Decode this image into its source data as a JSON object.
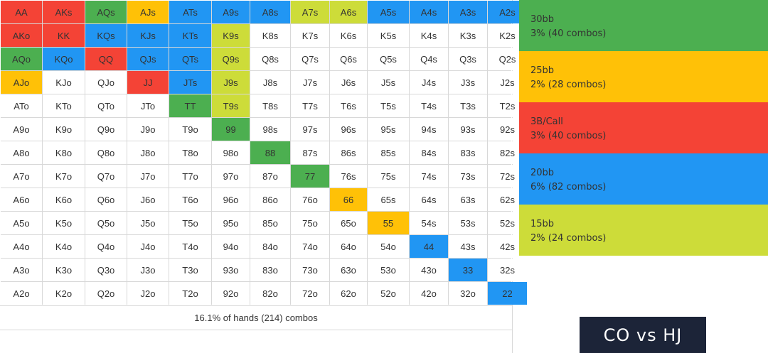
{
  "colors": {
    "30bb": "#4caf50",
    "25bb": "#ffc107",
    "3bcall": "#f44336",
    "20bb": "#2196f3",
    "15bb": "#cddc39",
    "none": "#ffffff"
  },
  "grid": [
    [
      [
        "AA",
        "3bcall"
      ],
      [
        "AKs",
        "3bcall"
      ],
      [
        "AQs",
        "30bb"
      ],
      [
        "AJs",
        "25bb"
      ],
      [
        "ATs",
        "20bb"
      ],
      [
        "A9s",
        "20bb"
      ],
      [
        "A8s",
        "20bb"
      ],
      [
        "A7s",
        "15bb"
      ],
      [
        "A6s",
        "15bb"
      ],
      [
        "A5s",
        "20bb"
      ],
      [
        "A4s",
        "20bb"
      ],
      [
        "A3s",
        "20bb"
      ],
      [
        "A2s",
        "20bb"
      ]
    ],
    [
      [
        "AKo",
        "3bcall"
      ],
      [
        "KK",
        "3bcall"
      ],
      [
        "KQs",
        "20bb"
      ],
      [
        "KJs",
        "20bb"
      ],
      [
        "KTs",
        "20bb"
      ],
      [
        "K9s",
        "15bb"
      ],
      [
        "K8s",
        "none"
      ],
      [
        "K7s",
        "none"
      ],
      [
        "K6s",
        "none"
      ],
      [
        "K5s",
        "none"
      ],
      [
        "K4s",
        "none"
      ],
      [
        "K3s",
        "none"
      ],
      [
        "K2s",
        "none"
      ]
    ],
    [
      [
        "AQo",
        "30bb"
      ],
      [
        "KQo",
        "20bb"
      ],
      [
        "QQ",
        "3bcall"
      ],
      [
        "QJs",
        "20bb"
      ],
      [
        "QTs",
        "20bb"
      ],
      [
        "Q9s",
        "15bb"
      ],
      [
        "Q8s",
        "none"
      ],
      [
        "Q7s",
        "none"
      ],
      [
        "Q6s",
        "none"
      ],
      [
        "Q5s",
        "none"
      ],
      [
        "Q4s",
        "none"
      ],
      [
        "Q3s",
        "none"
      ],
      [
        "Q2s",
        "none"
      ]
    ],
    [
      [
        "AJo",
        "25bb"
      ],
      [
        "KJo",
        "none"
      ],
      [
        "QJo",
        "none"
      ],
      [
        "JJ",
        "3bcall"
      ],
      [
        "JTs",
        "20bb"
      ],
      [
        "J9s",
        "15bb"
      ],
      [
        "J8s",
        "none"
      ],
      [
        "J7s",
        "none"
      ],
      [
        "J6s",
        "none"
      ],
      [
        "J5s",
        "none"
      ],
      [
        "J4s",
        "none"
      ],
      [
        "J3s",
        "none"
      ],
      [
        "J2s",
        "none"
      ]
    ],
    [
      [
        "ATo",
        "none"
      ],
      [
        "KTo",
        "none"
      ],
      [
        "QTo",
        "none"
      ],
      [
        "JTo",
        "none"
      ],
      [
        "TT",
        "30bb"
      ],
      [
        "T9s",
        "15bb"
      ],
      [
        "T8s",
        "none"
      ],
      [
        "T7s",
        "none"
      ],
      [
        "T6s",
        "none"
      ],
      [
        "T5s",
        "none"
      ],
      [
        "T4s",
        "none"
      ],
      [
        "T3s",
        "none"
      ],
      [
        "T2s",
        "none"
      ]
    ],
    [
      [
        "A9o",
        "none"
      ],
      [
        "K9o",
        "none"
      ],
      [
        "Q9o",
        "none"
      ],
      [
        "J9o",
        "none"
      ],
      [
        "T9o",
        "none"
      ],
      [
        "99",
        "30bb"
      ],
      [
        "98s",
        "none"
      ],
      [
        "97s",
        "none"
      ],
      [
        "96s",
        "none"
      ],
      [
        "95s",
        "none"
      ],
      [
        "94s",
        "none"
      ],
      [
        "93s",
        "none"
      ],
      [
        "92s",
        "none"
      ]
    ],
    [
      [
        "A8o",
        "none"
      ],
      [
        "K8o",
        "none"
      ],
      [
        "Q8o",
        "none"
      ],
      [
        "J8o",
        "none"
      ],
      [
        "T8o",
        "none"
      ],
      [
        "98o",
        "none"
      ],
      [
        "88",
        "30bb"
      ],
      [
        "87s",
        "none"
      ],
      [
        "86s",
        "none"
      ],
      [
        "85s",
        "none"
      ],
      [
        "84s",
        "none"
      ],
      [
        "83s",
        "none"
      ],
      [
        "82s",
        "none"
      ]
    ],
    [
      [
        "A7o",
        "none"
      ],
      [
        "K7o",
        "none"
      ],
      [
        "Q7o",
        "none"
      ],
      [
        "J7o",
        "none"
      ],
      [
        "T7o",
        "none"
      ],
      [
        "97o",
        "none"
      ],
      [
        "87o",
        "none"
      ],
      [
        "77",
        "30bb"
      ],
      [
        "76s",
        "none"
      ],
      [
        "75s",
        "none"
      ],
      [
        "74s",
        "none"
      ],
      [
        "73s",
        "none"
      ],
      [
        "72s",
        "none"
      ]
    ],
    [
      [
        "A6o",
        "none"
      ],
      [
        "K6o",
        "none"
      ],
      [
        "Q6o",
        "none"
      ],
      [
        "J6o",
        "none"
      ],
      [
        "T6o",
        "none"
      ],
      [
        "96o",
        "none"
      ],
      [
        "86o",
        "none"
      ],
      [
        "76o",
        "none"
      ],
      [
        "66",
        "25bb"
      ],
      [
        "65s",
        "none"
      ],
      [
        "64s",
        "none"
      ],
      [
        "63s",
        "none"
      ],
      [
        "62s",
        "none"
      ]
    ],
    [
      [
        "A5o",
        "none"
      ],
      [
        "K5o",
        "none"
      ],
      [
        "Q5o",
        "none"
      ],
      [
        "J5o",
        "none"
      ],
      [
        "T5o",
        "none"
      ],
      [
        "95o",
        "none"
      ],
      [
        "85o",
        "none"
      ],
      [
        "75o",
        "none"
      ],
      [
        "65o",
        "none"
      ],
      [
        "55",
        "25bb"
      ],
      [
        "54s",
        "none"
      ],
      [
        "53s",
        "none"
      ],
      [
        "52s",
        "none"
      ]
    ],
    [
      [
        "A4o",
        "none"
      ],
      [
        "K4o",
        "none"
      ],
      [
        "Q4o",
        "none"
      ],
      [
        "J4o",
        "none"
      ],
      [
        "T4o",
        "none"
      ],
      [
        "94o",
        "none"
      ],
      [
        "84o",
        "none"
      ],
      [
        "74o",
        "none"
      ],
      [
        "64o",
        "none"
      ],
      [
        "54o",
        "none"
      ],
      [
        "44",
        "20bb"
      ],
      [
        "43s",
        "none"
      ],
      [
        "42s",
        "none"
      ]
    ],
    [
      [
        "A3o",
        "none"
      ],
      [
        "K3o",
        "none"
      ],
      [
        "Q3o",
        "none"
      ],
      [
        "J3o",
        "none"
      ],
      [
        "T3o",
        "none"
      ],
      [
        "93o",
        "none"
      ],
      [
        "83o",
        "none"
      ],
      [
        "73o",
        "none"
      ],
      [
        "63o",
        "none"
      ],
      [
        "53o",
        "none"
      ],
      [
        "43o",
        "none"
      ],
      [
        "33",
        "20bb"
      ],
      [
        "32s",
        "none"
      ]
    ],
    [
      [
        "A2o",
        "none"
      ],
      [
        "K2o",
        "none"
      ],
      [
        "Q2o",
        "none"
      ],
      [
        "J2o",
        "none"
      ],
      [
        "T2o",
        "none"
      ],
      [
        "92o",
        "none"
      ],
      [
        "82o",
        "none"
      ],
      [
        "72o",
        "none"
      ],
      [
        "62o",
        "none"
      ],
      [
        "52o",
        "none"
      ],
      [
        "42o",
        "none"
      ],
      [
        "32o",
        "none"
      ],
      [
        "22",
        "20bb"
      ]
    ]
  ],
  "summary": "16.1% of hands (214) combos",
  "legend": [
    {
      "key": "30bb",
      "label": "30bb",
      "detail": "3% (40 combos)"
    },
    {
      "key": "25bb",
      "label": "25bb",
      "detail": "2% (28 combos)"
    },
    {
      "key": "3bcall",
      "label": "3B/Call",
      "detail": "3% (40 combos)"
    },
    {
      "key": "20bb",
      "label": "20bb",
      "detail": "6% (82 combos)"
    },
    {
      "key": "15bb",
      "label": "15bb",
      "detail": "2% (24 combos)"
    }
  ],
  "badge": "CO vs HJ"
}
